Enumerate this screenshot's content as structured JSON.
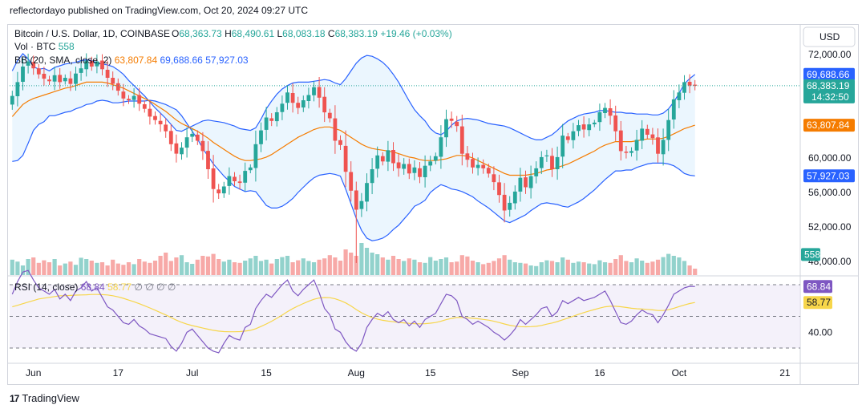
{
  "publisher": "reflectordayo published on TradingView.com, Oct 20, 2024 09:27 UTC",
  "footer_brand": "TradingView",
  "currency_button": "USD",
  "legend": {
    "symbol": "Bitcoin / U.S. Dollar, 1D, COINBASE",
    "ohlc": [
      {
        "k": "O",
        "v": "68,363.73"
      },
      {
        "k": "H",
        "v": "68,490.61"
      },
      {
        "k": "L",
        "v": "68,083.18"
      },
      {
        "k": "C",
        "v": "68,383.19"
      }
    ],
    "change": "+19.46 (+0.03%)",
    "vol_label": "Vol · BTC",
    "vol_value": "558",
    "bb_label": "BB (20, SMA, close, 2)",
    "bb_basis": "63,807.84",
    "bb_upper": "69,688.66",
    "bb_lower": "57,927.03",
    "rsi_label": "RSI (14, close)",
    "rsi_value": "68.84",
    "rsi_ma": "58.77",
    "rsi_extra": "∅ ∅ ∅ ∅"
  },
  "colors": {
    "up": "#26a69a",
    "down": "#ef5350",
    "bb_band": "#2962ff",
    "bb_basis": "#f57c00",
    "bb_fill": "#e3f2fd",
    "rsi_line": "#7e57c2",
    "rsi_ma": "#f7d64a",
    "rsi_fill": "#ede7f6"
  },
  "chart_data": {
    "type": "candlestick",
    "price_axis": {
      "ticks": [
        {
          "label": "72,000.00",
          "value": 72000
        },
        {
          "label": "60,000.00",
          "value": 60000
        },
        {
          "label": "56,000.00",
          "value": 56000
        },
        {
          "label": "52,000.00",
          "value": 52000
        },
        {
          "label": "48,000.00",
          "value": 48000
        }
      ],
      "badges": [
        {
          "label": "69,688.66",
          "value": 69688.66,
          "color": "#2962ff",
          "sub": ""
        },
        {
          "label": "68,383.19",
          "value": 68383.19,
          "color": "#26a69a",
          "sub": "14:32:50"
        },
        {
          "label": "63,807.84",
          "value": 63807.84,
          "color": "#f57c00",
          "sub": ""
        },
        {
          "label": "57,927.03",
          "value": 57927.03,
          "color": "#2962ff",
          "sub": ""
        },
        {
          "label": "558",
          "value": 48800,
          "color": "#26a69a",
          "sub": ""
        }
      ]
    },
    "rsi_axis": {
      "ticks": [
        {
          "label": "40.00",
          "value": 40
        }
      ],
      "levels": [
        70,
        50,
        30
      ],
      "badges": [
        {
          "label": "68.84",
          "value": 68.84,
          "color": "#7e57c2",
          "text": "#ffffff"
        },
        {
          "label": "58.77",
          "value": 58.77,
          "color": "#f7d64a",
          "text": "#131722"
        }
      ]
    },
    "x_labels": [
      {
        "label": "Jun",
        "day": 4
      },
      {
        "label": "17",
        "day": 20
      },
      {
        "label": "Jul",
        "day": 34
      },
      {
        "label": "15",
        "day": 48
      },
      {
        "label": "Aug",
        "day": 65
      },
      {
        "label": "15",
        "day": 79
      },
      {
        "label": "Sep",
        "day": 96
      },
      {
        "label": "16",
        "day": 111
      },
      {
        "label": "Oct",
        "day": 126
      },
      {
        "label": "21",
        "day": 146
      }
    ],
    "close": [
      67200,
      68800,
      70600,
      71200,
      70400,
      69700,
      69200,
      68900,
      69600,
      68800,
      69300,
      68600,
      69800,
      70400,
      71300,
      70600,
      71200,
      70300,
      69300,
      68600,
      67800,
      66900,
      66700,
      67200,
      66300,
      65700,
      64800,
      64400,
      63900,
      63100,
      61600,
      60500,
      61200,
      62400,
      62800,
      62000,
      60800,
      58700,
      56400,
      55900,
      56700,
      57900,
      57300,
      57100,
      58500,
      58900,
      61600,
      63200,
      64700,
      64300,
      65300,
      66300,
      67600,
      66400,
      65800,
      66700,
      67300,
      68200,
      67000,
      65300,
      64600,
      62000,
      61500,
      58400,
      56200,
      54000,
      55000,
      57100,
      58700,
      60300,
      59600,
      60900,
      59400,
      58800,
      59300,
      58200,
      58900,
      57800,
      59100,
      59600,
      60200,
      62400,
      64500,
      64300,
      63700,
      60500,
      59800,
      58900,
      59200,
      58800,
      58200,
      57200,
      55700,
      53900,
      54800,
      56100,
      57700,
      56600,
      57900,
      58800,
      60100,
      60300,
      58700,
      60100,
      62600,
      62100,
      63100,
      63800,
      63300,
      63900,
      64100,
      65300,
      65800,
      64900,
      63100,
      60800,
      60600,
      60800,
      62100,
      63400,
      62700,
      62300,
      60500,
      62100,
      64400,
      66800,
      67600,
      68800,
      68400,
      68383
    ],
    "bb_upper": [
      70100,
      71300,
      72100,
      71500,
      70600,
      70300,
      70400,
      70100,
      70500,
      70700,
      70900,
      71000,
      71100,
      71300,
      71400,
      71300,
      71000,
      70900,
      70800,
      70600,
      70200,
      69700,
      69000,
      68400,
      67800,
      67200,
      66500,
      65800,
      65200,
      64600,
      63900,
      63200,
      63100,
      63400,
      63700,
      64000,
      64300,
      64400,
      64300,
      64200,
      64100,
      63900,
      63700,
      63400,
      63300,
      63200,
      63500,
      64500,
      65700,
      66600,
      67400,
      68000,
      68400,
      68700,
      68800,
      68800,
      68800,
      68900,
      69000,
      69100,
      69000,
      68700,
      68500,
      69200,
      70100,
      71000,
      71600,
      71900,
      71800,
      71500,
      71100,
      70500,
      69700,
      68800,
      67700,
      66600,
      65600,
      64900,
      64300,
      63400,
      62900,
      62700,
      63100,
      63800,
      64300,
      64500,
      64600,
      64500,
      64400,
      64200,
      64000,
      63900,
      63800,
      63700,
      63500,
      63200,
      62900,
      62600,
      62300,
      62100,
      62100,
      62400,
      62700,
      63200,
      63800,
      64300,
      64600,
      64900,
      65100,
      65200,
      65300,
      65500,
      65500,
      65400,
      65300,
      65300,
      65200,
      65200,
      65100,
      65100,
      65100,
      65000,
      65000,
      65200,
      65700,
      66500,
      67500,
      68600,
      69200,
      69688.66
    ],
    "bb_basis": [
      64800,
      65500,
      66200,
      66600,
      66900,
      67100,
      67300,
      67500,
      67700,
      67900,
      68100,
      68200,
      68400,
      68600,
      68800,
      68800,
      68800,
      68800,
      68700,
      68500,
      68300,
      68100,
      67800,
      67500,
      67200,
      66900,
      66600,
      66200,
      65800,
      65400,
      64900,
      64400,
      64000,
      63700,
      63400,
      63100,
      62700,
      62300,
      61800,
      61400,
      61000,
      60600,
      60200,
      59900,
      59700,
      59700,
      59800,
      59900,
      60100,
      60400,
      60800,
      61200,
      61600,
      62000,
      62400,
      62700,
      63000,
      63300,
      63500,
      63600,
      63600,
      63400,
      63200,
      62800,
      62400,
      62000,
      61600,
      61300,
      61100,
      61000,
      60900,
      60800,
      60700,
      60500,
      60300,
      60100,
      60000,
      59800,
      59700,
      59700,
      59700,
      59800,
      59900,
      60100,
      60300,
      60300,
      60200,
      60000,
      59700,
      59400,
      59100,
      58800,
      58500,
      58200,
      58000,
      58000,
      58000,
      58000,
      58100,
      58200,
      58400,
      58600,
      58700,
      58900,
      59100,
      59300,
      59600,
      59900,
      60200,
      60500,
      60800,
      61200,
      61500,
      61700,
      61900,
      61900,
      61900,
      61900,
      62000,
      62100,
      62200,
      62200,
      62200,
      62300,
      62500,
      62800,
      63100,
      63400,
      63600,
      63807.84
    ],
    "bb_lower": [
      59600,
      59700,
      60300,
      61700,
      63200,
      63900,
      64200,
      64900,
      64900,
      65100,
      65300,
      65400,
      65700,
      65900,
      66200,
      66300,
      66600,
      66700,
      66600,
      66400,
      66400,
      66500,
      66600,
      66600,
      66600,
      66600,
      66700,
      66600,
      66400,
      66200,
      65900,
      65600,
      64900,
      64000,
      63100,
      62200,
      61100,
      60200,
      59300,
      58600,
      57900,
      57300,
      56700,
      56400,
      56100,
      56200,
      56100,
      55300,
      54500,
      54200,
      54200,
      54400,
      54800,
      55300,
      56000,
      56600,
      57200,
      57700,
      58000,
      58100,
      58200,
      58100,
      57900,
      56400,
      54700,
      53000,
      51600,
      50700,
      50400,
      50500,
      50700,
      51100,
      51700,
      52200,
      52900,
      53600,
      54400,
      54700,
      55100,
      56000,
      56500,
      56900,
      56700,
      56400,
      56300,
      56100,
      55800,
      55500,
      55000,
      54600,
      54200,
      53700,
      53200,
      52700,
      52500,
      52800,
      53100,
      53400,
      53900,
      54300,
      54700,
      54800,
      54700,
      54600,
      54400,
      54300,
      54600,
      54900,
      55300,
      55800,
      56300,
      56900,
      57500,
      58000,
      58500,
      58500,
      58600,
      58600,
      58900,
      59100,
      59300,
      59400,
      59400,
      59400,
      59300,
      59100,
      58700,
      58200,
      58000,
      57927.03
    ],
    "rsi": [
      64,
      72,
      78,
      79,
      73,
      68,
      66,
      64,
      67,
      61,
      64,
      60,
      66,
      68,
      72,
      66,
      68,
      62,
      56,
      54,
      50,
      46,
      45,
      48,
      44,
      42,
      39,
      38,
      37,
      36,
      31,
      28,
      33,
      40,
      42,
      38,
      34,
      30,
      28,
      27,
      33,
      38,
      36,
      35,
      43,
      45,
      55,
      60,
      64,
      62,
      66,
      70,
      73,
      66,
      63,
      67,
      70,
      73,
      65,
      55,
      51,
      42,
      40,
      34,
      30,
      28,
      33,
      43,
      48,
      52,
      50,
      53,
      48,
      46,
      48,
      44,
      47,
      43,
      48,
      50,
      52,
      58,
      64,
      63,
      60,
      50,
      48,
      45,
      47,
      45,
      43,
      40,
      38,
      35,
      38,
      42,
      48,
      45,
      48,
      51,
      55,
      56,
      50,
      53,
      60,
      58,
      60,
      62,
      60,
      61,
      62,
      64,
      66,
      60,
      53,
      46,
      45,
      47,
      51,
      54,
      52,
      51,
      46,
      51,
      57,
      64,
      66,
      68,
      69,
      68.84
    ],
    "rsi_ma": [
      56,
      57,
      58,
      59,
      60,
      61,
      61.5,
      62,
      62.5,
      63,
      63,
      63.2,
      63.4,
      63.5,
      63.6,
      63.8,
      63.8,
      63.7,
      63.5,
      63,
      62.3,
      61.4,
      60.3,
      59.2,
      58,
      56.7,
      55.3,
      53.9,
      52.4,
      50.9,
      49.3,
      47.6,
      46.2,
      45.1,
      44.2,
      43.4,
      42.6,
      41.9,
      41.2,
      40.7,
      40.4,
      40.3,
      40.3,
      40.4,
      40.7,
      41.2,
      42.2,
      43.6,
      45.2,
      46.9,
      48.8,
      50.8,
      53,
      54.9,
      56.6,
      58.1,
      59.5,
      60.8,
      61.6,
      61.9,
      61.8,
      61.1,
      60,
      58.5,
      56.6,
      54.3,
      52.3,
      50.6,
      49.3,
      48.3,
      47.5,
      47,
      46.6,
      46.2,
      45.9,
      45.6,
      45.4,
      45.3,
      45.4,
      45.7,
      46.1,
      46.9,
      47.9,
      48.7,
      49.3,
      49.3,
      49.1,
      48.8,
      48.5,
      48.1,
      47.6,
      46.9,
      46.1,
      45.2,
      44.4,
      43.8,
      43.5,
      43.4,
      43.5,
      43.7,
      44.3,
      45.1,
      45.8,
      46.7,
      47.8,
      48.9,
      50.1,
      51.3,
      52.4,
      53.4,
      54.3,
      55.2,
      56,
      56.4,
      56.4,
      56.1,
      55.6,
      55.1,
      54.8,
      54.6,
      54.4,
      54.1,
      53.7,
      53.7,
      54.2,
      55.1,
      56.2,
      57.2,
      58.1,
      58.77
    ],
    "volume": [
      0.48,
      0.42,
      0.3,
      0.5,
      0.55,
      0.38,
      0.46,
      0.4,
      0.5,
      0.3,
      0.36,
      0.42,
      0.32,
      0.54,
      0.5,
      0.45,
      0.38,
      0.4,
      0.3,
      0.48,
      0.36,
      0.32,
      0.4,
      0.34,
      0.5,
      0.42,
      0.38,
      0.45,
      0.6,
      0.7,
      0.44,
      0.55,
      0.62,
      0.4,
      0.35,
      0.48,
      0.6,
      0.58,
      0.66,
      0.5,
      0.42,
      0.48,
      0.4,
      0.38,
      0.45,
      0.52,
      0.6,
      0.44,
      0.48,
      0.36,
      0.5,
      0.56,
      0.6,
      0.4,
      0.46,
      0.52,
      0.44,
      0.4,
      0.48,
      0.52,
      0.62,
      0.55,
      0.45,
      0.8,
      0.7,
      0.6,
      1.0,
      0.85,
      0.7,
      0.65,
      0.55,
      0.48,
      0.6,
      0.5,
      0.44,
      0.52,
      0.48,
      0.4,
      0.38,
      0.56,
      0.45,
      0.5,
      0.55,
      0.4,
      0.42,
      0.62,
      0.58,
      0.45,
      0.4,
      0.34,
      0.38,
      0.44,
      0.52,
      0.62,
      0.48,
      0.4,
      0.38,
      0.36,
      0.3,
      0.28,
      0.4,
      0.46,
      0.44,
      0.4,
      0.55,
      0.48,
      0.38,
      0.42,
      0.4,
      0.36,
      0.34,
      0.46,
      0.4,
      0.38,
      0.5,
      0.62,
      0.44,
      0.4,
      0.52,
      0.45,
      0.38,
      0.42,
      0.48,
      0.56,
      0.66,
      0.6,
      0.55,
      0.44,
      0.3,
      0.2
    ]
  }
}
